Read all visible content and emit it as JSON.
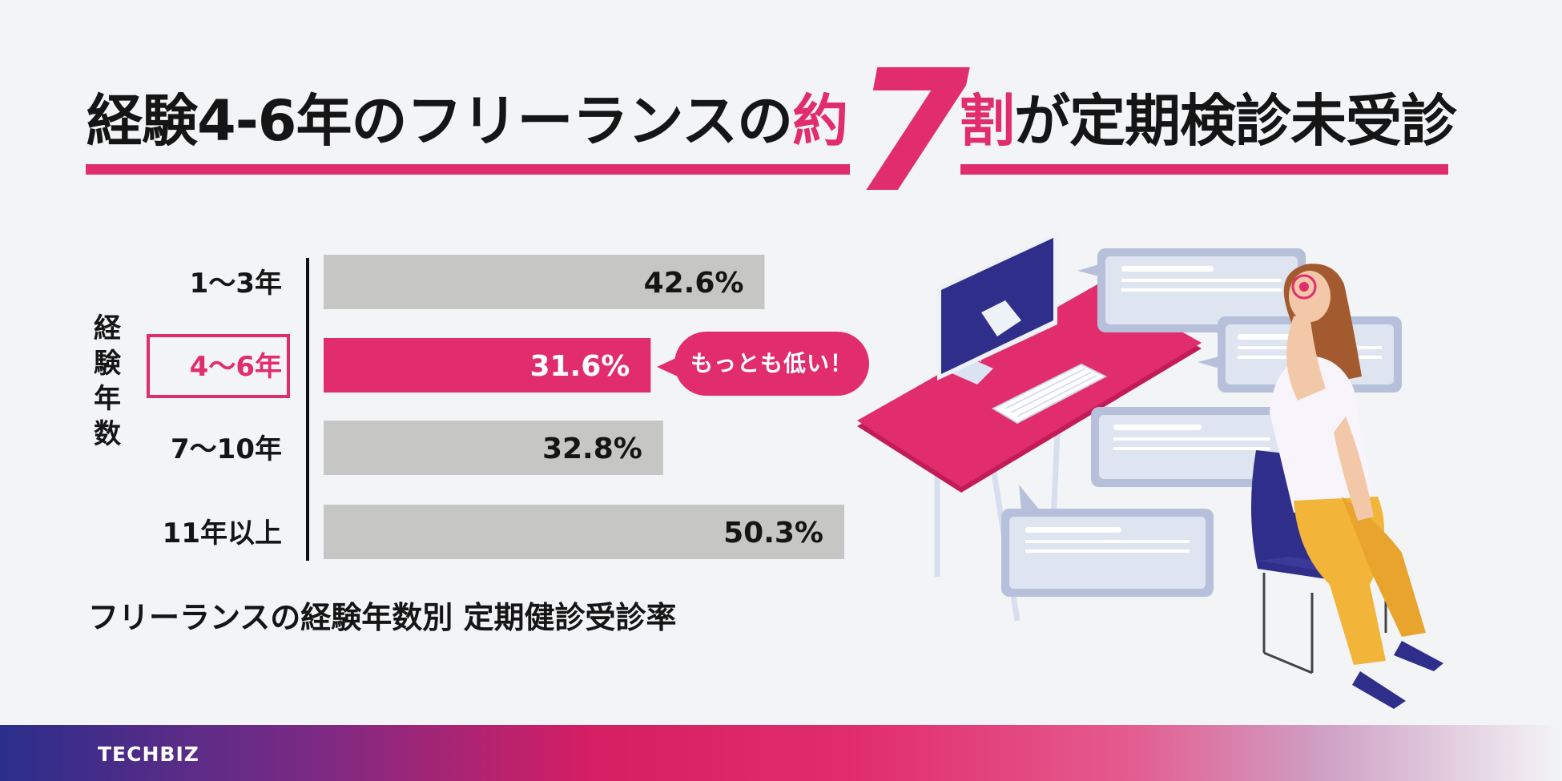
{
  "headline": {
    "part1": "経験4-6年のフリーランスの",
    "part1_accent": "約",
    "big_number": "7",
    "part2_accent": "割",
    "part2": "が定期検診未受診"
  },
  "axis_title": "経験年数",
  "callout": "もっとも低い！",
  "caption": "フリーランスの経験年数別 定期健診受診率",
  "brand": "TECHBIZ",
  "colors": {
    "accent": "#e12d6c",
    "bar_default": "#c6c7c5",
    "bar_highlight": "#e12d6c",
    "text": "#151515"
  },
  "chart_data": {
    "type": "bar",
    "orientation": "horizontal",
    "categories": [
      "1〜3年",
      "4〜6年",
      "7〜10年",
      "11年以上"
    ],
    "values": [
      42.6,
      31.6,
      32.8,
      50.3
    ],
    "value_labels": [
      "42.6%",
      "31.6%",
      "32.8%",
      "50.3%"
    ],
    "highlight_index": 1,
    "xlim": [
      0,
      60
    ],
    "ylabel": "経験年数",
    "title": "フリーランスの経験年数別 定期健診受診率",
    "grid": false
  }
}
